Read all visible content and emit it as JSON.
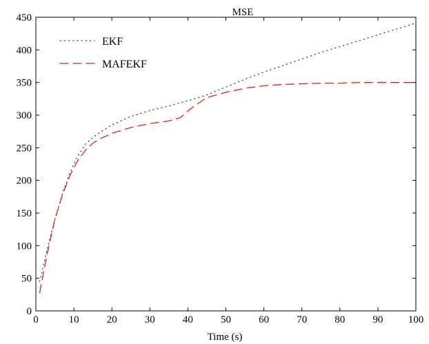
{
  "chart_data": {
    "type": "line",
    "title": "MSE",
    "xlabel": "Time (s)",
    "ylabel": "",
    "xlim": [
      0,
      100
    ],
    "ylim": [
      0,
      450
    ],
    "xticks": [
      0,
      10,
      20,
      30,
      40,
      50,
      60,
      70,
      80,
      90,
      100
    ],
    "yticks": [
      0,
      50,
      100,
      150,
      200,
      250,
      300,
      350,
      400,
      450
    ],
    "grid": false,
    "legend_position": "top-left",
    "series": [
      {
        "name": "EKF",
        "color": "#1f4e9a",
        "style": "dotted",
        "x": [
          1,
          3,
          5,
          7,
          9,
          11,
          13,
          15,
          17,
          20,
          25,
          30,
          35,
          40,
          45,
          50,
          55,
          60,
          65,
          70,
          75,
          80,
          85,
          90,
          95,
          100
        ],
        "y": [
          45,
          95,
          140,
          180,
          212,
          237,
          255,
          266,
          274,
          285,
          298,
          307,
          314,
          322,
          331,
          343,
          355,
          366,
          376,
          386,
          396,
          405,
          414,
          423,
          432,
          441
        ]
      },
      {
        "name": "MAFEKF",
        "color": "#e41a1c",
        "style": "dashed",
        "x": [
          1,
          3,
          5,
          7,
          9,
          11,
          13,
          15,
          17,
          20,
          25,
          30,
          35,
          38,
          41,
          45,
          50,
          55,
          60,
          65,
          70,
          75,
          80,
          85,
          90,
          95,
          100
        ],
        "y": [
          28,
          88,
          140,
          178,
          208,
          230,
          246,
          257,
          264,
          272,
          281,
          287,
          291,
          296,
          311,
          327,
          335,
          341,
          345,
          347,
          348,
          349,
          349,
          350,
          350,
          350,
          350
        ]
      }
    ]
  }
}
